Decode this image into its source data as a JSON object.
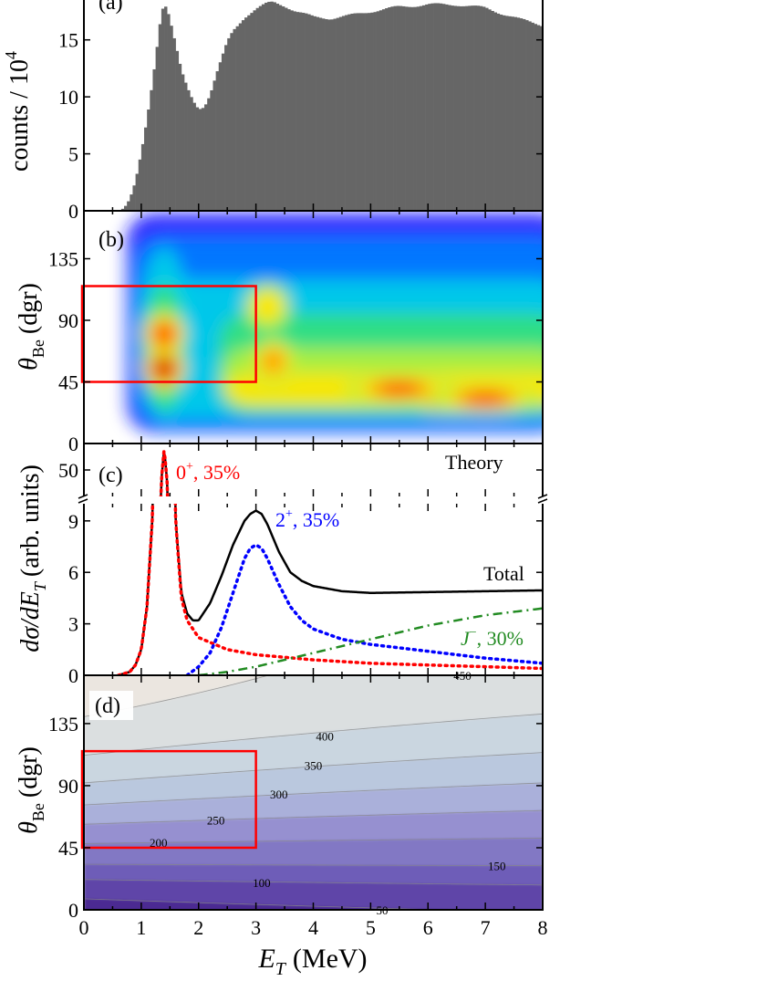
{
  "colors": {
    "histogram": "#666666",
    "frame": "#000000",
    "red_box": "#ff0000",
    "state_0plus": "#ff0000",
    "state_2plus": "#0000ff",
    "state_Jminus": "#228b22",
    "total": "#000000"
  },
  "x_axis": {
    "label_main": "E",
    "label_sub": "T",
    "label_unit": "(MeV)",
    "ticks": [
      "0",
      "1",
      "2",
      "3",
      "4",
      "5",
      "6",
      "7",
      "8"
    ]
  },
  "chart_data": [
    {
      "panel": "(a)",
      "type": "bar",
      "ylabel": "counts / 10",
      "ylabel_exp": "4",
      "yticks": [
        "0",
        "5",
        "10",
        "15"
      ],
      "xlim": [
        0,
        8
      ],
      "ylim": [
        0,
        18.5
      ],
      "x": [
        0.0,
        0.5,
        0.7,
        0.8,
        0.9,
        1.0,
        1.1,
        1.2,
        1.3,
        1.35,
        1.4,
        1.45,
        1.5,
        1.6,
        1.7,
        1.8,
        1.9,
        2.0,
        2.1,
        2.2,
        2.3,
        2.4,
        2.5,
        2.6,
        2.8,
        3.0,
        3.2,
        3.3,
        3.5,
        3.7,
        4.0,
        4.3,
        4.6,
        5.0,
        5.5,
        6.0,
        6.5,
        7.0,
        7.3,
        7.6,
        8.0
      ],
      "values": [
        0.0,
        0.0,
        0.3,
        1.0,
        2.5,
        5.0,
        8.0,
        11.5,
        15.5,
        17.5,
        18.2,
        17.8,
        16.8,
        14.5,
        12.2,
        10.8,
        9.7,
        9.0,
        9.2,
        10.2,
        11.8,
        13.3,
        14.8,
        15.8,
        17.0,
        17.7,
        18.2,
        18.3,
        18.0,
        17.5,
        17.0,
        16.9,
        17.1,
        17.5,
        17.9,
        18.1,
        18.1,
        17.8,
        17.3,
        16.8,
        16.3
      ]
    },
    {
      "panel": "(b)",
      "type": "heatmap",
      "ylabel": "θ",
      "ylabel_sub": "Be",
      "ylabel_unit": "(dgr)",
      "yticks": [
        "0",
        "45",
        "90",
        "135"
      ],
      "xlim": [
        0,
        8
      ],
      "ylim": [
        0,
        170
      ],
      "gates": {
        "x": [
          0,
          3
        ],
        "y": [
          45,
          115
        ]
      },
      "hotspots": [
        {
          "x": 1.4,
          "y": 55,
          "level": 1.0
        },
        {
          "x": 1.4,
          "y": 80,
          "level": 0.7
        },
        {
          "x": 3.3,
          "y": 60,
          "level": 0.6
        },
        {
          "x": 6.5,
          "y": 33,
          "level": 0.9
        },
        {
          "x": 7.0,
          "y": 33,
          "level": 0.85
        },
        {
          "x": 5.5,
          "y": 40,
          "level": 0.7
        },
        {
          "x": 3.2,
          "y": 100,
          "level": 0.4
        }
      ]
    },
    {
      "panel": "(c)",
      "type": "line",
      "ylabel": "dσ/dE",
      "ylabel_sub": "T",
      "ylabel_unit": "(arb. units)",
      "yticks_low": [
        "0",
        "3",
        "6",
        "9"
      ],
      "yticks_high": [
        "50"
      ],
      "ylim_low": [
        0,
        10
      ],
      "ylim_high": [
        45,
        55
      ],
      "annotation_theory": "Theory",
      "labels": {
        "zero": "0",
        "zero_sup": "+",
        "zero_pct": ", 35%",
        "two": "2",
        "two_sup": "+",
        "two_pct": ", 35%",
        "total": "Total",
        "jminus": "J",
        "jminus_sup": "−",
        "jminus_pct": ", 30%"
      },
      "series": [
        {
          "name": "0+, 35%",
          "style": "dotted",
          "x": [
            0.6,
            0.8,
            0.9,
            1.0,
            1.1,
            1.2,
            1.3,
            1.35,
            1.4,
            1.45,
            1.5,
            1.6,
            1.7,
            1.8,
            2.0,
            2.5,
            3.0,
            4.0,
            5.0,
            6.0,
            7.0,
            8.0
          ],
          "y": [
            0.0,
            0.2,
            0.6,
            1.5,
            4.0,
            9.5,
            30,
            48,
            54,
            48,
            30,
            9.0,
            4.5,
            3.2,
            2.2,
            1.5,
            1.2,
            0.9,
            0.7,
            0.6,
            0.5,
            0.4
          ]
        },
        {
          "name": "2+, 35%",
          "style": "dotted",
          "x": [
            1.8,
            2.0,
            2.2,
            2.4,
            2.6,
            2.8,
            2.9,
            3.0,
            3.1,
            3.2,
            3.4,
            3.6,
            3.8,
            4.0,
            4.5,
            5.0,
            6.0,
            7.0,
            8.0
          ],
          "y": [
            0.0,
            0.5,
            1.3,
            2.8,
            4.8,
            6.8,
            7.4,
            7.6,
            7.4,
            6.8,
            5.3,
            4.0,
            3.2,
            2.7,
            2.1,
            1.8,
            1.4,
            1.0,
            0.7
          ]
        },
        {
          "name": "J−, 30%",
          "style": "dashdot",
          "x": [
            2.0,
            2.5,
            3.0,
            3.5,
            4.0,
            4.5,
            5.0,
            5.5,
            6.0,
            6.5,
            7.0,
            7.5,
            8.0
          ],
          "y": [
            0.0,
            0.2,
            0.5,
            0.9,
            1.3,
            1.7,
            2.1,
            2.5,
            2.9,
            3.2,
            3.5,
            3.7,
            3.9
          ]
        },
        {
          "name": "Total",
          "style": "solid",
          "x": [
            0.6,
            0.8,
            0.9,
            1.0,
            1.1,
            1.2,
            1.3,
            1.35,
            1.4,
            1.45,
            1.5,
            1.6,
            1.7,
            1.8,
            1.9,
            2.0,
            2.2,
            2.4,
            2.6,
            2.8,
            2.9,
            3.0,
            3.1,
            3.2,
            3.4,
            3.6,
            3.8,
            4.0,
            4.5,
            5.0,
            6.0,
            7.0,
            8.0
          ],
          "y": [
            0.0,
            0.2,
            0.6,
            1.5,
            4.0,
            9.5,
            30,
            48,
            54,
            48,
            30,
            9.0,
            4.8,
            3.6,
            3.2,
            3.2,
            4.2,
            5.8,
            7.6,
            9.0,
            9.4,
            9.6,
            9.4,
            8.8,
            7.2,
            6.0,
            5.5,
            5.2,
            4.9,
            4.8,
            4.85,
            4.9,
            4.95
          ]
        }
      ]
    },
    {
      "panel": "(d)",
      "type": "heatmap",
      "ylabel": "θ",
      "ylabel_sub": "Be",
      "ylabel_unit": "(dgr)",
      "yticks": [
        "0",
        "45",
        "90",
        "135"
      ],
      "xlim": [
        0,
        8
      ],
      "ylim": [
        0,
        170
      ],
      "gates": {
        "x": [
          0,
          3
        ],
        "y": [
          45,
          115
        ]
      },
      "contours": [
        {
          "level": "50",
          "y0": 8,
          "y8": -2
        },
        {
          "level": "100",
          "y0": 22,
          "y8": 18
        },
        {
          "level": "150",
          "y0": 33,
          "y8": 32
        },
        {
          "level": "200",
          "y0": 48,
          "y8": 52
        },
        {
          "level": "250",
          "y0": 62,
          "y8": 72
        },
        {
          "level": "300",
          "y0": 76,
          "y8": 92
        },
        {
          "level": "350",
          "y0": 92,
          "y8": 114
        },
        {
          "level": "400",
          "y0": 112,
          "y8": 142
        },
        {
          "level": "450",
          "y0": 140,
          "y8": 200
        }
      ]
    }
  ]
}
